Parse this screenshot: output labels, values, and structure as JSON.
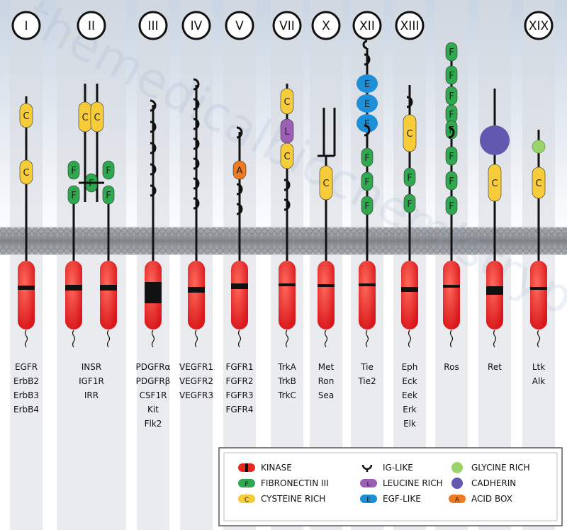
{
  "watermark": "themedicalbiochemistrypage.org",
  "receptor_classes": [
    {
      "numeral": "I",
      "names": [
        "EGFR",
        "ErbB2",
        "ErbB3",
        "ErbB4"
      ]
    },
    {
      "numeral": "II",
      "names": [
        "INSR",
        "IGF1R",
        "IRR"
      ]
    },
    {
      "numeral": "III",
      "names": [
        "PDGFRα",
        "PDGFRβ",
        "CSF1R",
        "Kit",
        "Flk2"
      ]
    },
    {
      "numeral": "IV",
      "names": [
        "VEGFR1",
        "VEGFR2",
        "VEGFR3"
      ]
    },
    {
      "numeral": "V",
      "names": [
        "FGFR1",
        "FGFR2",
        "FGFR3",
        "FGFR4"
      ]
    },
    {
      "numeral": "VII",
      "names": [
        "TrkA",
        "TrkB",
        "TrkC"
      ]
    },
    {
      "numeral": "X",
      "names": [
        "Met",
        "Ron",
        "Sea"
      ]
    },
    {
      "numeral": "XII",
      "names": [
        "Tie",
        "Tie2"
      ]
    },
    {
      "numeral": "XIII",
      "names": [
        "Eph",
        "Eck",
        "Eek",
        "Erk",
        "Elk"
      ]
    },
    {
      "numeral": "",
      "names": [
        "Ros"
      ]
    },
    {
      "numeral": "",
      "names": [
        "Ret"
      ]
    },
    {
      "numeral": "XIX",
      "names": [
        "Ltk",
        "Alk"
      ]
    }
  ],
  "domain_letters": {
    "fibronectin": "F",
    "cysteine": "C",
    "leucine": "L",
    "egf": "E",
    "acid": "A"
  },
  "legend": [
    {
      "key": "kinase",
      "label": "KINASE"
    },
    {
      "key": "fibronectin",
      "label": "FIBRONECTIN III"
    },
    {
      "key": "cysteine",
      "label": "CYSTEINE RICH"
    },
    {
      "key": "ig",
      "label": "IG-LIKE"
    },
    {
      "key": "leucine",
      "label": "LEUCINE RICH"
    },
    {
      "key": "egf",
      "label": "EGF-LIKE"
    },
    {
      "key": "glycine",
      "label": "GLYCINE RICH"
    },
    {
      "key": "cadherin",
      "label": "CADHERIN"
    },
    {
      "key": "acid",
      "label": "ACID BOX"
    }
  ],
  "colors": {
    "kinase": "#e8281e",
    "fibronectin": "#2fa84f",
    "cysteine": "#f7cc3a",
    "leucine": "#9b5fb5",
    "egf": "#1e8fd6",
    "glycine": "#9bd46a",
    "cadherin": "#6158b0",
    "acid": "#ef7a22",
    "membrane": "#8e9196",
    "column": "#d7dbe0"
  }
}
